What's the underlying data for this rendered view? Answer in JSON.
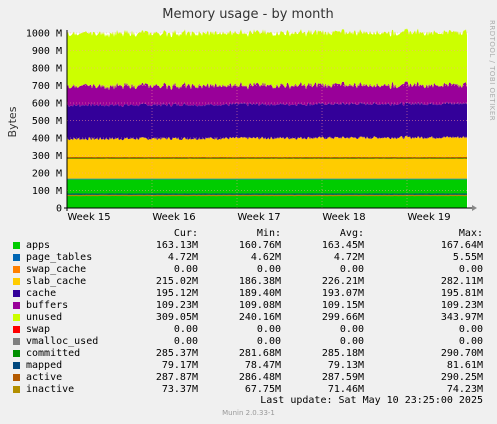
{
  "chart_data": {
    "type": "area",
    "title": "Memory usage - by month",
    "ylabel": "Bytes",
    "ylim": [
      0,
      1000000000
    ],
    "grid": true,
    "y_ticks": [
      "0",
      "100 M",
      "200 M",
      "300 M",
      "400 M",
      "500 M",
      "600 M",
      "700 M",
      "800 M",
      "900 M",
      "1000 M"
    ],
    "x_ticks": [
      "Week 15",
      "Week 16",
      "Week 17",
      "Week 18",
      "Week 19"
    ],
    "stacked_series": [
      {
        "name": "apps",
        "color": "#00cc00",
        "avg": 163.45
      },
      {
        "name": "page_tables",
        "color": "#0066b3",
        "avg": 4.72
      },
      {
        "name": "swap_cache",
        "color": "#ff8000",
        "avg": 0
      },
      {
        "name": "slab_cache",
        "color": "#ffcc00",
        "avg": 226.21
      },
      {
        "name": "cache",
        "color": "#330099",
        "avg": 193.07
      },
      {
        "name": "buffers",
        "color": "#990099",
        "avg": 109.15
      },
      {
        "name": "unused",
        "color": "#ccff00",
        "avg": 299.66
      },
      {
        "name": "swap",
        "color": "#ff0000",
        "avg": 0
      }
    ],
    "line_series": [
      {
        "name": "vmalloc_used",
        "color": "#808080",
        "avg": 0
      },
      {
        "name": "committed",
        "color": "#008f00",
        "avg": 285.18
      },
      {
        "name": "mapped",
        "color": "#00487d",
        "avg": 79.13
      },
      {
        "name": "active",
        "color": "#b35a00",
        "avg": 287.59
      },
      {
        "name": "inactive",
        "color": "#b38f00",
        "avg": 71.46
      }
    ]
  },
  "legend": {
    "headers": {
      "cur": "Cur:",
      "min": "Min:",
      "avg": "Avg:",
      "max": "Max:"
    },
    "rows": [
      {
        "name": "apps",
        "color": "#00cc00",
        "cur": "163.13M",
        "min": "160.76M",
        "avg": "163.45M",
        "max": "167.64M"
      },
      {
        "name": "page_tables",
        "color": "#0066b3",
        "cur": "4.72M",
        "min": "4.62M",
        "avg": "4.72M",
        "max": "5.55M"
      },
      {
        "name": "swap_cache",
        "color": "#ff8000",
        "cur": "0.00",
        "min": "0.00",
        "avg": "0.00",
        "max": "0.00"
      },
      {
        "name": "slab_cache",
        "color": "#ffcc00",
        "cur": "215.02M",
        "min": "186.38M",
        "avg": "226.21M",
        "max": "282.11M"
      },
      {
        "name": "cache",
        "color": "#330099",
        "cur": "195.12M",
        "min": "189.40M",
        "avg": "193.07M",
        "max": "195.81M"
      },
      {
        "name": "buffers",
        "color": "#990099",
        "cur": "109.23M",
        "min": "109.08M",
        "avg": "109.15M",
        "max": "109.23M"
      },
      {
        "name": "unused",
        "color": "#ccff00",
        "cur": "309.05M",
        "min": "240.16M",
        "avg": "299.66M",
        "max": "343.97M"
      },
      {
        "name": "swap",
        "color": "#ff0000",
        "cur": "0.00",
        "min": "0.00",
        "avg": "0.00",
        "max": "0.00"
      },
      {
        "name": "vmalloc_used",
        "color": "#808080",
        "cur": "0.00",
        "min": "0.00",
        "avg": "0.00",
        "max": "0.00"
      },
      {
        "name": "committed",
        "color": "#008f00",
        "cur": "285.37M",
        "min": "281.68M",
        "avg": "285.18M",
        "max": "290.70M"
      },
      {
        "name": "mapped",
        "color": "#00487d",
        "cur": "79.17M",
        "min": "78.47M",
        "avg": "79.13M",
        "max": "81.61M"
      },
      {
        "name": "active",
        "color": "#b35a00",
        "cur": "287.87M",
        "min": "286.48M",
        "avg": "287.59M",
        "max": "290.25M"
      },
      {
        "name": "inactive",
        "color": "#b38f00",
        "cur": "73.37M",
        "min": "67.75M",
        "avg": "71.46M",
        "max": "74.23M"
      }
    ]
  },
  "last_update": "Last update:  Sat May 10 23:25:00 2025",
  "version": "Munin 2.0.33-1",
  "rrdtool_label": "RRDTOOL / TOBI OETIKER"
}
